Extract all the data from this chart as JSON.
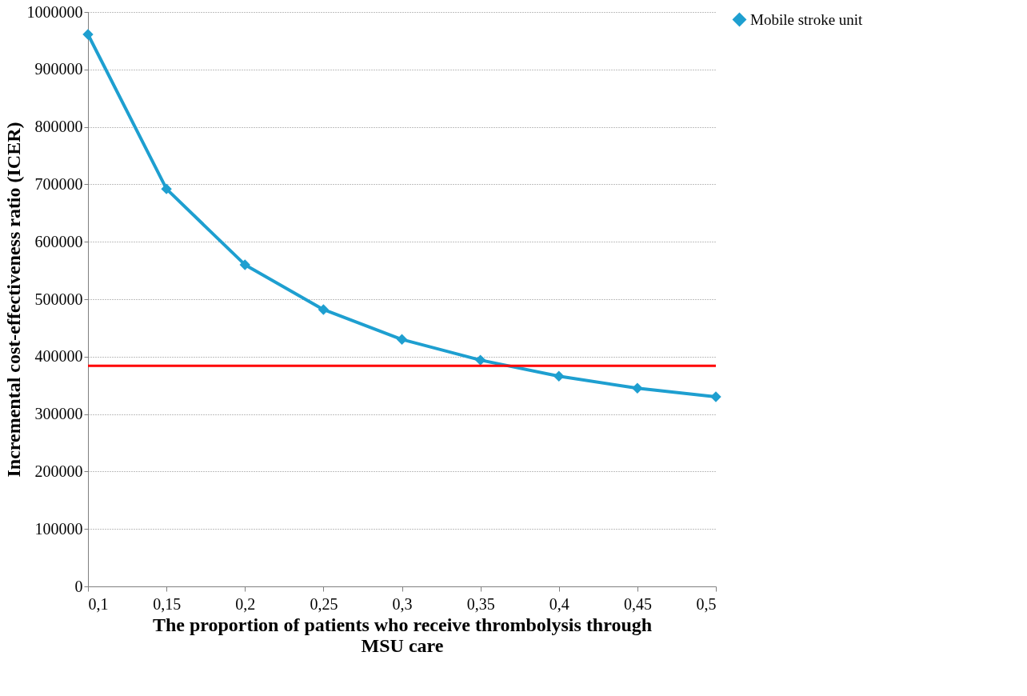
{
  "chart_data": {
    "type": "line",
    "xlabel": "The proportion of patients who receive thrombolysis through MSU care",
    "ylabel": "Incremental cost-effectiveness ratio (ICER)",
    "categories": [
      "0,1",
      "0,15",
      "0,2",
      "0,25",
      "0,3",
      "0,35",
      "0,4",
      "0,45",
      "0,5"
    ],
    "series": [
      {
        "name": "Mobile stroke unit",
        "color": "#1e9fd0",
        "values": [
          961000,
          692000,
          560000,
          482000,
          430000,
          394000,
          366000,
          345000,
          330000
        ]
      }
    ],
    "ylim": [
      0,
      1000000
    ],
    "yticks": [
      0,
      100000,
      200000,
      300000,
      400000,
      500000,
      600000,
      700000,
      800000,
      900000,
      1000000
    ],
    "ref_lines": [
      {
        "axis": "y",
        "value": 384000,
        "color": "#ff0000"
      }
    ],
    "grid": "y",
    "legend": "right",
    "marker": "diamond",
    "line_style": "solid"
  }
}
